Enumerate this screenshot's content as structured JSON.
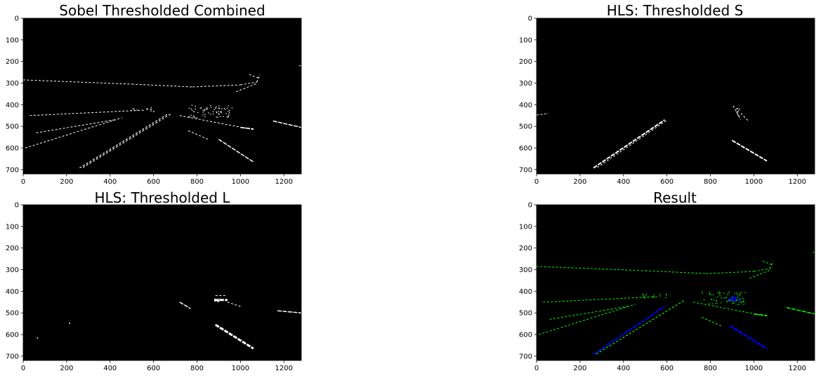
{
  "colors": {
    "background": "#000000",
    "sobel_pixel": "#ffffff",
    "hls_pixel": "#ffffff",
    "result_sobel": "#00ff00",
    "result_hls": "#0000ff",
    "page": "#ffffff"
  },
  "chart_data": [
    {
      "type": "image",
      "title": "Sobel Thresholded Combined",
      "xlim": [
        0,
        1280
      ],
      "ylim": [
        720,
        0
      ],
      "x_ticks": [
        0,
        200,
        400,
        600,
        800,
        1000,
        1200
      ],
      "y_ticks": [
        0,
        100,
        200,
        300,
        400,
        500,
        600,
        700
      ],
      "pixel_color": "#ffffff",
      "strokes": [
        {
          "points": [
            [
              260,
              692
            ],
            [
              670,
              440
            ]
          ],
          "width": 1.2
        },
        {
          "points": [
            [
              275,
              690
            ],
            [
              680,
              442
            ]
          ],
          "width": 1.2
        },
        {
          "points": [
            [
              10,
              600
            ],
            [
              455,
              460
            ]
          ],
          "width": 1
        },
        {
          "points": [
            [
              60,
              530
            ],
            [
              420,
              470
            ]
          ],
          "width": 1
        },
        {
          "points": [
            [
              0,
              285
            ],
            [
              500,
              305
            ]
          ],
          "width": 1
        },
        {
          "points": [
            [
              500,
              305
            ],
            [
              780,
              318
            ]
          ],
          "width": 1
        },
        {
          "points": [
            [
              780,
              318
            ],
            [
              1000,
              308
            ]
          ],
          "width": 1
        },
        {
          "points": [
            [
              1000,
              308
            ],
            [
              1075,
              295
            ]
          ],
          "width": 1
        },
        {
          "points": [
            [
              1075,
              295
            ],
            [
              1090,
              260
            ]
          ],
          "width": 1
        },
        {
          "points": [
            [
              1040,
              260
            ],
            [
              1090,
              280
            ]
          ],
          "width": 1
        },
        {
          "points": [
            [
              980,
              340
            ],
            [
              1080,
              300
            ]
          ],
          "width": 1
        },
        {
          "points": [
            [
              30,
              450
            ],
            [
              560,
              425
            ]
          ],
          "width": 1
        },
        {
          "points": [
            [
              900,
              560
            ],
            [
              1060,
              665
            ]
          ],
          "width": 1.5
        },
        {
          "points": [
            [
              720,
              450
            ],
            [
              1060,
              515
            ]
          ],
          "width": 1
        },
        {
          "points": [
            [
              1000,
              505
            ],
            [
              1060,
              512
            ]
          ],
          "width": 1.6
        },
        {
          "points": [
            [
              1150,
              475
            ],
            [
              1280,
              505
            ]
          ],
          "width": 1.5
        },
        {
          "points": [
            [
              760,
              520
            ],
            [
              850,
              560
            ]
          ],
          "width": 1
        },
        {
          "points": [
            [
              1270,
              220
            ],
            [
              1280,
              220
            ]
          ],
          "width": 1
        }
      ],
      "clusters": [
        {
          "center": [
            860,
            430
          ],
          "spread": [
            200,
            60
          ],
          "count": 70
        },
        {
          "center": [
            540,
            420
          ],
          "spread": [
            120,
            20
          ],
          "count": 14
        }
      ]
    },
    {
      "type": "image",
      "title": "HLS: Thresholded S",
      "xlim": [
        0,
        1280
      ],
      "ylim": [
        720,
        0
      ],
      "x_ticks": [
        0,
        200,
        400,
        600,
        800,
        1000,
        1200
      ],
      "y_ticks": [
        0,
        100,
        200,
        300,
        400,
        500,
        600,
        700
      ],
      "pixel_color": "#ffffff",
      "strokes": [
        {
          "points": [
            [
              262,
              692
            ],
            [
              590,
              470
            ]
          ],
          "width": 2
        },
        {
          "points": [
            [
              280,
              690
            ],
            [
              600,
              472
            ]
          ],
          "width": 1
        },
        {
          "points": [
            [
              900,
              565
            ],
            [
              1060,
              660
            ]
          ],
          "width": 2
        },
        {
          "points": [
            [
              905,
              405
            ],
            [
              940,
              470
            ]
          ],
          "width": 1
        },
        {
          "points": [
            [
              940,
              440
            ],
            [
              975,
              475
            ]
          ],
          "width": 1
        },
        {
          "points": [
            [
              0,
              448
            ],
            [
              55,
              440
            ]
          ],
          "width": 1
        }
      ],
      "clusters": [
        {
          "center": [
            920,
            430
          ],
          "spread": [
            30,
            40
          ],
          "count": 10
        }
      ]
    },
    {
      "type": "image",
      "title": "HLS: Thresholded L",
      "xlim": [
        0,
        1280
      ],
      "ylim": [
        720,
        0
      ],
      "x_ticks": [
        0,
        200,
        400,
        600,
        800,
        1000,
        1200
      ],
      "y_ticks": [
        0,
        100,
        200,
        300,
        400,
        500,
        600,
        700
      ],
      "pixel_color": "#ffffff",
      "strokes": [
        {
          "points": [
            [
              885,
              555
            ],
            [
              1060,
              665
            ]
          ],
          "width": 3
        },
        {
          "points": [
            [
              880,
              440
            ],
            [
              940,
              440
            ]
          ],
          "width": 3
        },
        {
          "points": [
            [
              885,
              420
            ],
            [
              935,
              420
            ]
          ],
          "width": 1
        },
        {
          "points": [
            [
              940,
              450
            ],
            [
              1000,
              470
            ]
          ],
          "width": 1
        },
        {
          "points": [
            [
              1170,
              490
            ],
            [
              1280,
              500
            ]
          ],
          "width": 1.5
        },
        {
          "points": [
            [
              720,
              450
            ],
            [
              770,
              480
            ]
          ],
          "width": 1.5
        }
      ],
      "clusters": [
        {
          "center": [
            890,
            440
          ],
          "spread": [
            25,
            12
          ],
          "count": 18
        },
        {
          "center": [
            210,
            545
          ],
          "spread": [
            5,
            5
          ],
          "count": 2
        },
        {
          "center": [
            65,
            615
          ],
          "spread": [
            5,
            5
          ],
          "count": 2
        }
      ]
    },
    {
      "type": "image",
      "title": "Result",
      "xlim": [
        0,
        1280
      ],
      "ylim": [
        720,
        0
      ],
      "x_ticks": [
        0,
        200,
        400,
        600,
        800,
        1000,
        1200
      ],
      "y_ticks": [
        0,
        100,
        200,
        300,
        400,
        500,
        600,
        700
      ],
      "pixel_color": "#00ff00",
      "strokes": [
        {
          "points": [
            [
              10,
              600
            ],
            [
              455,
              460
            ]
          ],
          "width": 1
        },
        {
          "points": [
            [
              60,
              530
            ],
            [
              420,
              470
            ]
          ],
          "width": 1
        },
        {
          "points": [
            [
              0,
              285
            ],
            [
              500,
              305
            ]
          ],
          "width": 1
        },
        {
          "points": [
            [
              500,
              305
            ],
            [
              780,
              318
            ]
          ],
          "width": 1
        },
        {
          "points": [
            [
              780,
              318
            ],
            [
              1000,
              308
            ]
          ],
          "width": 1
        },
        {
          "points": [
            [
              1000,
              308
            ],
            [
              1075,
              295
            ]
          ],
          "width": 1
        },
        {
          "points": [
            [
              1075,
              295
            ],
            [
              1090,
              260
            ]
          ],
          "width": 1
        },
        {
          "points": [
            [
              1040,
              260
            ],
            [
              1090,
              280
            ]
          ],
          "width": 1
        },
        {
          "points": [
            [
              980,
              340
            ],
            [
              1080,
              300
            ]
          ],
          "width": 1
        },
        {
          "points": [
            [
              30,
              450
            ],
            [
              560,
              425
            ]
          ],
          "width": 1
        },
        {
          "points": [
            [
              275,
              690
            ],
            [
              680,
              442
            ]
          ],
          "width": 1.2
        },
        {
          "points": [
            [
              720,
              450
            ],
            [
              1060,
              515
            ]
          ],
          "width": 1
        },
        {
          "points": [
            [
              1000,
              505
            ],
            [
              1060,
              512
            ]
          ],
          "width": 1.6
        },
        {
          "points": [
            [
              1150,
              475
            ],
            [
              1280,
              505
            ]
          ],
          "width": 1.5
        },
        {
          "points": [
            [
              760,
              520
            ],
            [
              850,
              560
            ]
          ],
          "width": 1
        },
        {
          "points": [
            [
              1270,
              220
            ],
            [
              1280,
              220
            ]
          ],
          "width": 1
        },
        {
          "points": [
            [
              262,
              692
            ],
            [
              590,
              470
            ]
          ],
          "width": 2,
          "color": "#0000ff"
        },
        {
          "points": [
            [
              890,
              560
            ],
            [
              1060,
              665
            ]
          ],
          "width": 2.5,
          "color": "#0000ff"
        },
        {
          "points": [
            [
              880,
              440
            ],
            [
              940,
              440
            ]
          ],
          "width": 3,
          "color": "#0000ff"
        }
      ],
      "clusters": [
        {
          "center": [
            860,
            430
          ],
          "spread": [
            200,
            60
          ],
          "count": 70
        },
        {
          "center": [
            540,
            420
          ],
          "spread": [
            120,
            20
          ],
          "count": 14
        },
        {
          "center": [
            905,
            430
          ],
          "spread": [
            25,
            15
          ],
          "count": 22,
          "color": "#0000ff"
        }
      ]
    }
  ]
}
